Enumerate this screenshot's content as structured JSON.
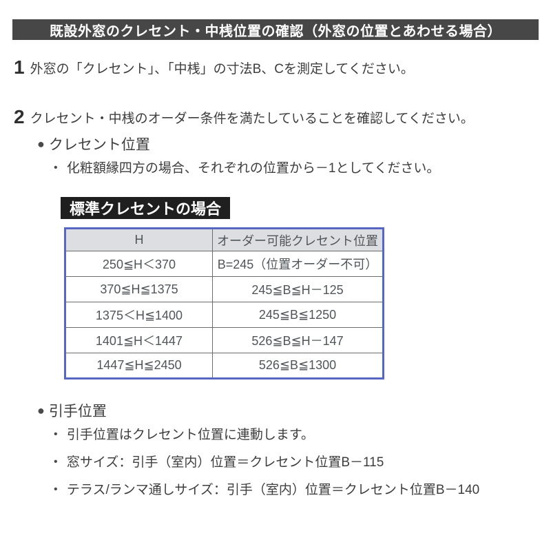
{
  "title_bar": {
    "text": "既設外窓のクレセント・中桟位置の確認（外窓の位置とあわせる場合）"
  },
  "steps": [
    {
      "number": "1",
      "text": "外窓の「クレセント」、「中桟」の寸法B、Cを測定してください。"
    },
    {
      "number": "2",
      "text": "クレセント・中桟のオーダー条件を満たしていることを確認してください。"
    }
  ],
  "crescent_section": {
    "heading": "クレセント位置",
    "note": "化粧額縁四方の場合、それぞれの位置から－1としてください。",
    "table_label": "標準クレセントの場合"
  },
  "handle_section": {
    "heading": "引手位置",
    "notes": [
      "引手位置はクレセント位置に連動します。",
      "窓サイズ：引手（室内）位置＝クレセント位置B－115",
      "テラス/ランマ通しサイズ：引手（室内）位置＝クレセント位置B－140"
    ]
  },
  "chart_data": {
    "type": "table",
    "title": "標準クレセントの場合",
    "columns": [
      "H",
      "オーダー可能クレセント位置"
    ],
    "rows": [
      [
        "250≦H＜370",
        "B=245（位置オーダー不可）"
      ],
      [
        "370≦H≦1375",
        "245≦B≦H－125"
      ],
      [
        "1375＜H≦1400",
        "245≦B≦1250"
      ],
      [
        "1401≦H＜1447",
        "526≦B≦H－147"
      ],
      [
        "1447≦H≦2450",
        "526≦B≦1300"
      ]
    ]
  },
  "colors": {
    "title_bar_bg": "#474747",
    "label_bg": "#1f1f1f",
    "table_border": "#5566c4",
    "table_header_bg": "#dcdee2",
    "body_text": "#3d3d3d"
  }
}
